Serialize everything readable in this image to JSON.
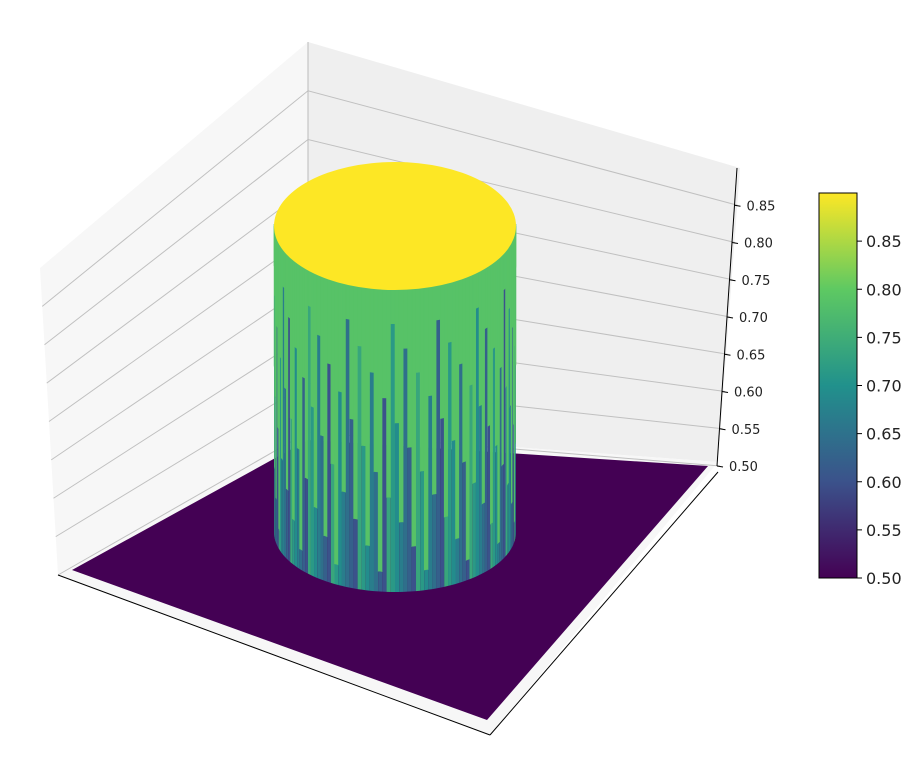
{
  "chart_data": {
    "type": "surface3d",
    "colormap": "viridis",
    "colormap_stops": [
      "#440154",
      "#3b528b",
      "#21918c",
      "#5ec962",
      "#fde725"
    ],
    "surface": {
      "shape": "cylinder",
      "base_value": 0.5,
      "top_value": 0.9,
      "center": [
        0.5,
        0.5
      ],
      "radius_fraction": 0.3
    },
    "z_axis": {
      "lim": [
        0.5,
        0.9
      ],
      "ticks": [
        0.5,
        0.55,
        0.6,
        0.65,
        0.7,
        0.75,
        0.8,
        0.85
      ],
      "tick_labels": [
        "0.50",
        "0.55",
        "0.60",
        "0.65",
        "0.70",
        "0.75",
        "0.80",
        "0.85"
      ]
    },
    "x_axis": {
      "tick_labels": []
    },
    "y_axis": {
      "tick_labels": []
    },
    "colorbar": {
      "lim": [
        0.5,
        0.9
      ],
      "ticks": [
        0.5,
        0.55,
        0.6,
        0.65,
        0.7,
        0.75,
        0.8,
        0.85
      ],
      "tick_labels": [
        "0.50",
        "0.55",
        "0.60",
        "0.65",
        "0.70",
        "0.75",
        "0.80",
        "0.85"
      ]
    },
    "grid": true,
    "pane_color": "#f2f2f2",
    "grid_color": "#c0c0c0"
  }
}
